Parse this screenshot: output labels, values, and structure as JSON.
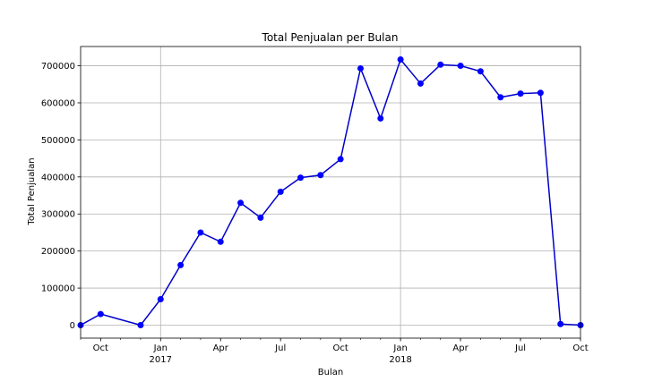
{
  "chart_data": {
    "type": "line",
    "title": "Total Penjualan per Bulan",
    "xlabel": "Bulan",
    "ylabel": "Total Penjualan",
    "grid": true,
    "legend": "none",
    "colors": {
      "line": "#0000cc",
      "marker": "#0000ff",
      "grid": "#b0b0b0",
      "frame": "#000000"
    },
    "x": [
      "2016-09",
      "2016-10",
      "2016-11",
      "2016-12",
      "2017-01",
      "2017-02",
      "2017-03",
      "2017-04",
      "2017-05",
      "2017-06",
      "2017-07",
      "2017-08",
      "2017-09",
      "2017-10",
      "2017-11",
      "2017-12",
      "2018-01",
      "2018-02",
      "2018-03",
      "2018-04",
      "2018-05",
      "2018-06",
      "2018-07",
      "2018-08",
      "2018-09",
      "2018-10"
    ],
    "values": [
      0,
      30000,
      null,
      0,
      70000,
      162000,
      250000,
      225000,
      330000,
      290000,
      360000,
      398000,
      405000,
      448000,
      693000,
      558000,
      717000,
      652000,
      703000,
      700000,
      685000,
      615000,
      625000,
      627000,
      3000,
      0
    ],
    "xlim": [
      "2016-09",
      "2018-10"
    ],
    "ylim": [
      -35000,
      752000
    ],
    "yticks": [
      0,
      100000,
      200000,
      300000,
      400000,
      500000,
      600000,
      700000
    ],
    "ytick_labels": [
      "0",
      "100000",
      "200000",
      "300000",
      "400000",
      "500000",
      "600000",
      "700000"
    ],
    "xticks": [
      {
        "x": "2016-10",
        "label": "Oct",
        "sub": ""
      },
      {
        "x": "2017-01",
        "label": "Jan",
        "sub": "2017"
      },
      {
        "x": "2017-04",
        "label": "Apr",
        "sub": ""
      },
      {
        "x": "2017-07",
        "label": "Jul",
        "sub": ""
      },
      {
        "x": "2017-10",
        "label": "Oct",
        "sub": ""
      },
      {
        "x": "2018-01",
        "label": "Jan",
        "sub": "2018"
      },
      {
        "x": "2018-04",
        "label": "Apr",
        "sub": ""
      },
      {
        "x": "2018-07",
        "label": "Jul",
        "sub": ""
      },
      {
        "x": "2018-10",
        "label": "Oct",
        "sub": ""
      }
    ],
    "major_gridlines_x": [
      "2017-01",
      "2018-01"
    ]
  }
}
